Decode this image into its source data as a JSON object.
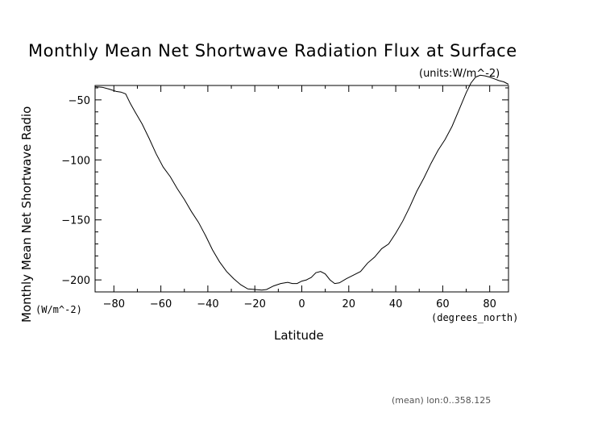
{
  "chart_data": {
    "type": "line",
    "title": "Monthly Mean Net Shortwave Radiation Flux at Surface",
    "units_label": "(units:W/m^-2)",
    "xlabel": "Latitude",
    "x_units": "(degrees_north)",
    "ylabel": "Monthly Mean Net Shortwave Radio",
    "y_units": "(W/m^-2)",
    "footer": "(mean) lon:0..358.125",
    "xlim": [
      -88,
      88
    ],
    "ylim": [
      -210,
      -38
    ],
    "x_ticks": [
      -80,
      -60,
      -40,
      -20,
      0,
      20,
      40,
      60,
      80
    ],
    "y_ticks": [
      -50,
      -100,
      -150,
      -200
    ],
    "grid": false,
    "series": [
      {
        "x": [
          -88,
          -85,
          -82,
          -79,
          -77,
          -75,
          -73,
          -71,
          -68,
          -65,
          -62,
          -59,
          -56,
          -53,
          -50,
          -47,
          -44,
          -41,
          -38,
          -35,
          -32,
          -29,
          -26,
          -23,
          -20,
          -17,
          -15,
          -12,
          -9,
          -6,
          -4,
          -2,
          0,
          2,
          4,
          6,
          8,
          10,
          12,
          14,
          16,
          19,
          22,
          25,
          28,
          31,
          34,
          37,
          40,
          43,
          46,
          49,
          52,
          55,
          58,
          61,
          64,
          67,
          70,
          72,
          74,
          76,
          78,
          80,
          82,
          84,
          86,
          88
        ],
        "y": [
          -39,
          -39.5,
          -41,
          -43,
          -43.5,
          -45,
          -53,
          -60,
          -70,
          -82,
          -95,
          -106,
          -114,
          -124,
          -133,
          -143,
          -152,
          -163,
          -175,
          -185,
          -193,
          -199,
          -204,
          -207.5,
          -208,
          -208.5,
          -208,
          -205,
          -203,
          -202,
          -203,
          -203,
          -201,
          -200,
          -198,
          -194,
          -193,
          -195,
          -200,
          -203,
          -202.5,
          -199,
          -196,
          -193,
          -186,
          -181,
          -174,
          -170,
          -161,
          -151,
          -139,
          -126,
          -115,
          -103,
          -92,
          -83,
          -72,
          -58,
          -44,
          -36,
          -31,
          -29.5,
          -30,
          -31,
          -32.5,
          -34,
          -35,
          -37
        ]
      }
    ]
  }
}
